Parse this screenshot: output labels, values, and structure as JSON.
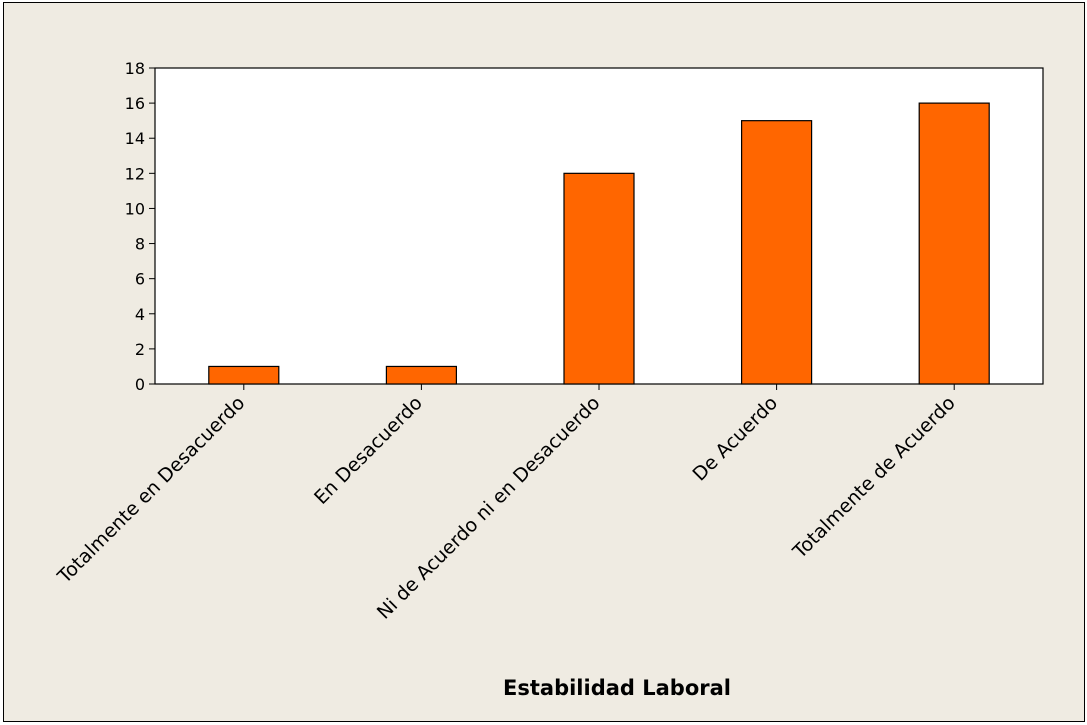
{
  "chart_data": {
    "type": "bar",
    "title": "",
    "xlabel": "Estabilidad Laboral",
    "ylabel": "",
    "categories": [
      "Totalmente en Desacuerdo",
      "En Desacuerdo",
      "Ni de Acuerdo ni en Desacuerdo",
      "De Acuerdo",
      "Totalmente de Acuerdo"
    ],
    "values": [
      1,
      1,
      12,
      15,
      16
    ],
    "ylim": [
      0,
      18
    ],
    "yticks": [
      0,
      2,
      4,
      6,
      8,
      10,
      12,
      14,
      16,
      18
    ],
    "grid": false,
    "legend": "none",
    "colors": {
      "bar_fill": "#ff6600",
      "bar_stroke": "#000000",
      "plot_background": "#ffffff",
      "figure_background": "#efebe2"
    }
  }
}
